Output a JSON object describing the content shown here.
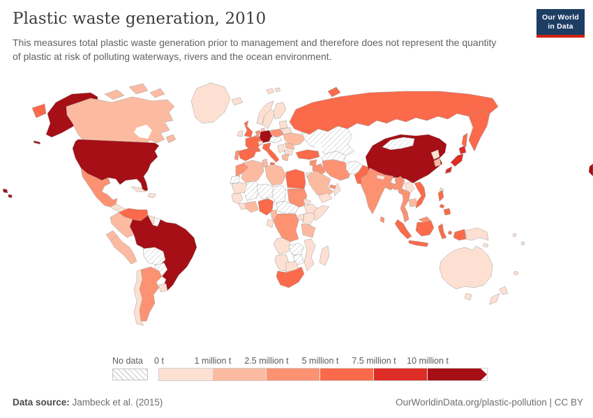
{
  "header": {
    "title": "Plastic waste generation, 2010",
    "subtitle": "This measures total plastic waste generation prior to management and therefore does not represent the quantity of plastic at risk of polluting waterways, rivers and the ocean environment."
  },
  "logo": {
    "line1": "Our World",
    "line2": "in Data",
    "bg_color": "#1d3d63",
    "bar_color": "#cf2211"
  },
  "footer": {
    "source_label": "Data source:",
    "source_value": "Jambeck et al. (2015)",
    "credit": "OurWorldinData.org/plastic-pollution | CC BY"
  },
  "chart_data": {
    "type": "choropleth_map",
    "title": "Plastic waste generation, 2010",
    "year": 2010,
    "unit": "tonnes",
    "legend": {
      "no_data_label": "No data",
      "tick_labels": [
        "0 t",
        "1 million t",
        "2.5 million t",
        "5 million t",
        "7.5 million t",
        "10 million t"
      ],
      "band_ranges": [
        "0-1 million t",
        "1-2.5 million t",
        "2.5-5 million t",
        "5-7.5 million t",
        "7.5-10 million t",
        "10+ million t"
      ],
      "colors": [
        "#fee0d2",
        "#fcbba1",
        "#fc9272",
        "#fb6a4a",
        "#de2d26",
        "#a50f15"
      ],
      "no_data_pattern": "diagonal-hatch"
    },
    "countries": {
      "united-states": 5,
      "canada": 1,
      "greenland": 0,
      "mexico": 2,
      "central-america": 0,
      "cuba": 0,
      "hispaniola": 0,
      "venezuela": 3,
      "colombia": 1,
      "guyana": 0,
      "suriname": "no-data",
      "ecuador": 1,
      "peru": 1,
      "brazil": 5,
      "bolivia": "no-data",
      "paraguay": "no-data",
      "chile": 0,
      "argentina": 2,
      "uruguay": 0,
      "iceland": 0,
      "svalbard": 0,
      "united-kingdom": 3,
      "ireland": 0,
      "norway": 0,
      "sweden": 0,
      "finland": 0,
      "denmark": 1,
      "germany": 5,
      "netherlands": 2,
      "belgium": 2,
      "france": 3,
      "spain": 3,
      "portugal": 2,
      "italy": 3,
      "switzerland": 0,
      "austria": "no-data",
      "poland": 2,
      "baltic-states": 0,
      "belarus": 0,
      "ukraine": 1,
      "romania": 1,
      "serbia": 0,
      "bulgaria": 0,
      "greece": 1,
      "russia": 3,
      "kazakhstan": "no-data",
      "central-asia": "no-data",
      "turkey": 3,
      "syria": 2,
      "iraq": 2,
      "iran": 2,
      "jordan": 0,
      "saudi-arabia": 1,
      "yemen": 0,
      "oman": 0,
      "united-arab-emirates": 2,
      "afghanistan": "no-data",
      "pakistan": 3,
      "india": 2,
      "nepal": 0,
      "bangladesh": 2,
      "sri-lanka": 2,
      "china": 5,
      "mongolia": "no-data",
      "taiwan": 0,
      "north-korea": 0,
      "south-korea": 1,
      "japan": 4,
      "myanmar": 2,
      "laos": 0,
      "thailand": 2,
      "cambodia": 1,
      "vietnam": 3,
      "malaysia": 2,
      "indonesia": 3,
      "philippines": 3,
      "papua-new-guinea": 0,
      "morocco": 2,
      "western-sahara": "no-data",
      "algeria": 1,
      "tunisia": 1,
      "libya": 1,
      "egypt": 3,
      "mauritania": 0,
      "mali": "no-data",
      "niger": "no-data",
      "chad": "no-data",
      "sudan": 2,
      "eritrea": 0,
      "ethiopia": 0,
      "somalia": 0,
      "senegal": 0,
      "sierra-leone": 0,
      "ivory-coast": 1,
      "nigeria": 3,
      "cameroon": 1,
      "central-african-republic": "no-data",
      "gabon": 0,
      "dr-congo": 2,
      "uganda": 0,
      "kenya": 0,
      "tanzania": 1,
      "angola": 0,
      "zambia": "no-data",
      "zimbabwe": "no-data",
      "mozambique": 0,
      "namibia": 0,
      "botswana": 0,
      "south-africa": 3,
      "madagascar": 0,
      "australia": 0,
      "new-zealand": 0,
      "pacific-islands": 0
    }
  }
}
